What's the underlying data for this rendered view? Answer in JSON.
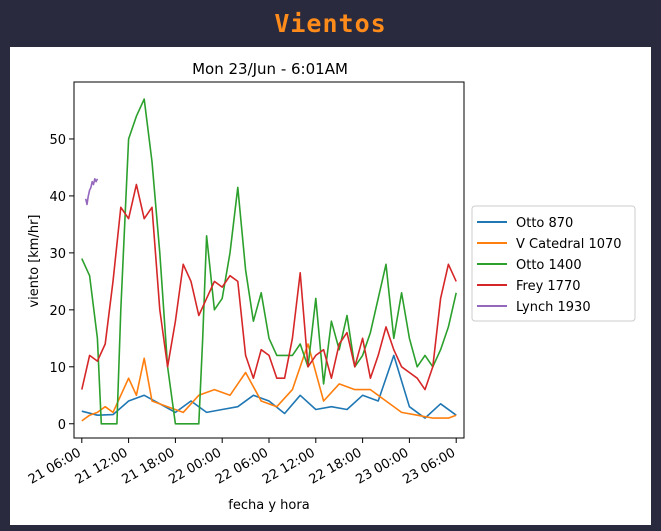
{
  "header": {
    "title": "Vientos"
  },
  "chart_data": {
    "type": "line",
    "title": "Mon 23/Jun - 6:01AM",
    "xlabel": "fecha y hora",
    "ylabel": "viento [km/hr]",
    "xlim": [
      "2025-06-21 05:00",
      "2025-06-23 07:00"
    ],
    "ylim": [
      -2.5,
      60
    ],
    "xticks": [
      "21 06:00",
      "21 12:00",
      "21 18:00",
      "22 00:00",
      "22 06:00",
      "22 12:00",
      "22 18:00",
      "23 00:00",
      "23 06:00"
    ],
    "yticks": [
      0,
      10,
      20,
      30,
      40,
      50
    ],
    "legend_position": "center-right",
    "grid": false,
    "series": [
      {
        "name": "Otto 870",
        "color": "#1f77b4",
        "x": [
          "2025-06-21 06:00",
          "2025-06-21 08:00",
          "2025-06-21 10:00",
          "2025-06-21 12:00",
          "2025-06-21 14:00",
          "2025-06-21 16:00",
          "2025-06-21 18:00",
          "2025-06-21 20:00",
          "2025-06-21 22:00",
          "2025-06-22 00:00",
          "2025-06-22 02:00",
          "2025-06-22 04:00",
          "2025-06-22 06:00",
          "2025-06-22 08:00",
          "2025-06-22 10:00",
          "2025-06-22 12:00",
          "2025-06-22 14:00",
          "2025-06-22 16:00",
          "2025-06-22 18:00",
          "2025-06-22 20:00",
          "2025-06-22 22:00",
          "2025-06-23 00:00",
          "2025-06-23 02:00",
          "2025-06-23 04:00",
          "2025-06-23 06:00"
        ],
        "values": [
          2.2,
          1.5,
          1.6,
          4.0,
          5.0,
          3.5,
          2.0,
          4.0,
          2.0,
          2.5,
          3.0,
          5.0,
          4.0,
          1.8,
          5.0,
          2.5,
          3.0,
          2.5,
          5.0,
          4.0,
          12.0,
          3.0,
          1.0,
          3.5,
          1.5
        ]
      },
      {
        "name": "V Catedral 1070",
        "color": "#ff7f0e",
        "x": [
          "2025-06-21 06:00",
          "2025-06-21 07:00",
          "2025-06-21 08:00",
          "2025-06-21 09:00",
          "2025-06-21 10:00",
          "2025-06-21 11:00",
          "2025-06-21 12:00",
          "2025-06-21 13:00",
          "2025-06-21 14:00",
          "2025-06-21 15:00",
          "2025-06-21 17:00",
          "2025-06-21 19:00",
          "2025-06-21 21:00",
          "2025-06-21 23:00",
          "2025-06-22 01:00",
          "2025-06-22 03:00",
          "2025-06-22 05:00",
          "2025-06-22 07:00",
          "2025-06-22 09:00",
          "2025-06-22 11:00",
          "2025-06-22 13:00",
          "2025-06-22 15:00",
          "2025-06-22 17:00",
          "2025-06-22 19:00",
          "2025-06-22 21:00",
          "2025-06-22 23:00",
          "2025-06-23 01:00",
          "2025-06-23 03:00",
          "2025-06-23 05:00",
          "2025-06-23 06:00"
        ],
        "values": [
          0.5,
          1.5,
          2.0,
          3.0,
          2.0,
          5.0,
          8.0,
          5.0,
          11.5,
          4.0,
          3.0,
          2.0,
          5.0,
          6.0,
          5.0,
          9.0,
          4.0,
          3.0,
          6.0,
          14.0,
          4.0,
          7.0,
          6.0,
          6.0,
          4.0,
          2.0,
          1.5,
          1.0,
          1.0,
          1.5
        ]
      },
      {
        "name": "Otto 1400",
        "color": "#2ca02c",
        "x": [
          "2025-06-21 06:00",
          "2025-06-21 07:00",
          "2025-06-21 08:00",
          "2025-06-21 08:30",
          "2025-06-21 10:30",
          "2025-06-21 11:00",
          "2025-06-21 12:00",
          "2025-06-21 13:00",
          "2025-06-21 14:00",
          "2025-06-21 15:00",
          "2025-06-21 16:00",
          "2025-06-21 17:00",
          "2025-06-21 18:00",
          "2025-06-21 19:00",
          "2025-06-21 21:00",
          "2025-06-21 21:30",
          "2025-06-21 22:00",
          "2025-06-21 23:00",
          "2025-06-22 00:00",
          "2025-06-22 01:00",
          "2025-06-22 02:00",
          "2025-06-22 03:00",
          "2025-06-22 04:00",
          "2025-06-22 05:00",
          "2025-06-22 06:00",
          "2025-06-22 07:00",
          "2025-06-22 09:00",
          "2025-06-22 10:00",
          "2025-06-22 11:00",
          "2025-06-22 12:00",
          "2025-06-22 13:00",
          "2025-06-22 14:00",
          "2025-06-22 15:00",
          "2025-06-22 16:00",
          "2025-06-22 17:00",
          "2025-06-22 18:00",
          "2025-06-22 19:00",
          "2025-06-22 20:00",
          "2025-06-22 21:00",
          "2025-06-22 22:00",
          "2025-06-22 23:00",
          "2025-06-23 00:00",
          "2025-06-23 01:00",
          "2025-06-23 02:00",
          "2025-06-23 03:00",
          "2025-06-23 04:00",
          "2025-06-23 05:00",
          "2025-06-23 06:00"
        ],
        "values": [
          29,
          26,
          15,
          0,
          0,
          20,
          50,
          54,
          57,
          46,
          30,
          10,
          0,
          0,
          0,
          15,
          33,
          20,
          22,
          30,
          41.5,
          27,
          18,
          23,
          15,
          12,
          12,
          14,
          10,
          22,
          7,
          18,
          13,
          19,
          10,
          12,
          16,
          22,
          28,
          15,
          23,
          15,
          10,
          12,
          10,
          13,
          17,
          23
        ]
      },
      {
        "name": "Frey 1770",
        "color": "#d62728",
        "x": [
          "2025-06-21 06:00",
          "2025-06-21 07:00",
          "2025-06-21 08:00",
          "2025-06-21 09:00",
          "2025-06-21 10:00",
          "2025-06-21 11:00",
          "2025-06-21 12:00",
          "2025-06-21 13:00",
          "2025-06-21 14:00",
          "2025-06-21 15:00",
          "2025-06-21 16:00",
          "2025-06-21 17:00",
          "2025-06-21 18:00",
          "2025-06-21 19:00",
          "2025-06-21 20:00",
          "2025-06-21 21:00",
          "2025-06-21 22:00",
          "2025-06-21 23:00",
          "2025-06-22 00:00",
          "2025-06-22 01:00",
          "2025-06-22 02:00",
          "2025-06-22 03:00",
          "2025-06-22 04:00",
          "2025-06-22 05:00",
          "2025-06-22 06:00",
          "2025-06-22 07:00",
          "2025-06-22 08:00",
          "2025-06-22 09:00",
          "2025-06-22 10:00",
          "2025-06-22 11:00",
          "2025-06-22 12:00",
          "2025-06-22 13:00",
          "2025-06-22 14:00",
          "2025-06-22 15:00",
          "2025-06-22 16:00",
          "2025-06-22 17:00",
          "2025-06-22 18:00",
          "2025-06-22 19:00",
          "2025-06-22 20:00",
          "2025-06-22 21:00",
          "2025-06-22 22:00",
          "2025-06-22 23:00",
          "2025-06-23 00:00",
          "2025-06-23 01:00",
          "2025-06-23 02:00",
          "2025-06-23 03:00",
          "2025-06-23 04:00",
          "2025-06-23 05:00",
          "2025-06-23 06:00"
        ],
        "values": [
          6,
          12,
          11,
          14,
          25,
          38,
          36,
          42,
          36,
          38,
          20,
          10,
          18,
          28,
          25,
          19,
          22,
          25,
          24,
          26,
          25,
          12,
          8,
          13,
          12,
          8,
          8,
          15,
          26.5,
          10,
          12,
          13,
          8,
          14,
          16,
          10,
          15,
          8,
          12,
          17,
          13,
          10,
          9,
          8,
          6,
          10,
          22,
          28,
          25
        ]
      },
      {
        "name": "Lynch 1930",
        "color": "#9467bd",
        "x": [
          "2025-06-21 06:30",
          "2025-06-21 06:40",
          "2025-06-21 06:50",
          "2025-06-21 07:00",
          "2025-06-21 07:10",
          "2025-06-21 07:20",
          "2025-06-21 07:30",
          "2025-06-21 07:40",
          "2025-06-21 07:50",
          "2025-06-21 08:00"
        ],
        "values": [
          39.5,
          38.5,
          40,
          41,
          41.5,
          42.5,
          42,
          43,
          42.5,
          43
        ]
      }
    ]
  }
}
